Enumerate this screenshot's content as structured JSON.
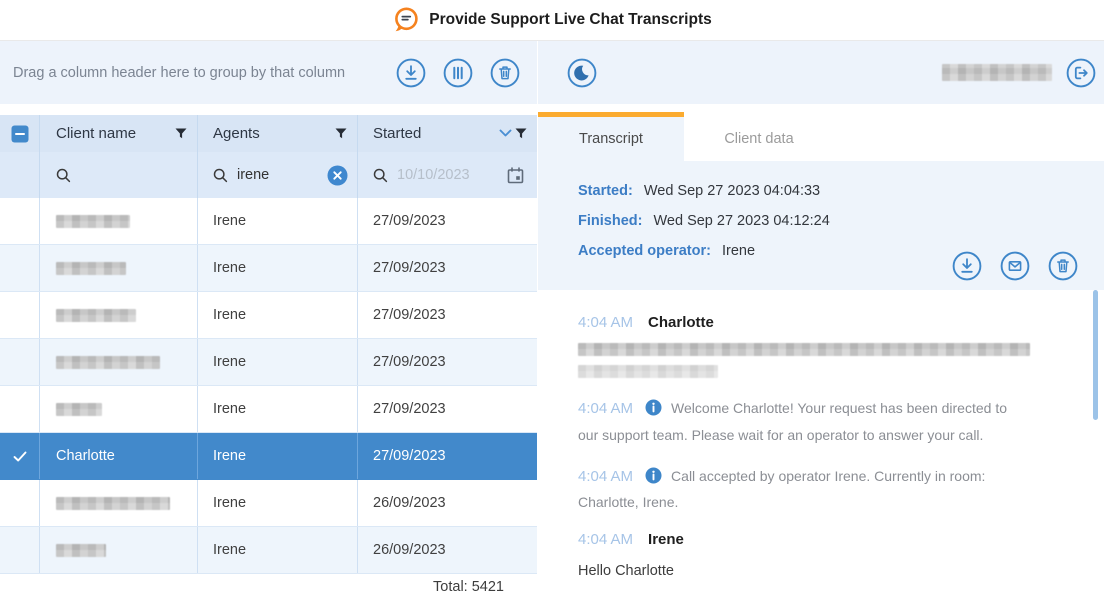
{
  "banner": {
    "title": "Provide Support Live Chat Transcripts"
  },
  "colors": {
    "accent_blue": "#3e86c9",
    "selected_row": "#4289cb",
    "tab_orange": "#fbab2f",
    "logo_orange": "#f5821f"
  },
  "left_panel": {
    "group_hint": "Drag a column header here to group by that column",
    "toolbar_icons": [
      "download-icon",
      "column-chooser-icon",
      "trash-icon"
    ],
    "columns": [
      {
        "label": "Client name"
      },
      {
        "label": "Agents"
      },
      {
        "label": "Started",
        "sort": "desc"
      }
    ],
    "filters": {
      "client_value": "",
      "agents_value": "irene",
      "started_placeholder": "10/10/2023"
    },
    "rows": [
      {
        "client": "",
        "redacted": true,
        "agent": "Irene",
        "started": "27/09/2023",
        "selected": false
      },
      {
        "client": "",
        "redacted": true,
        "agent": "Irene",
        "started": "27/09/2023",
        "selected": false
      },
      {
        "client": "",
        "redacted": true,
        "agent": "Irene",
        "started": "27/09/2023",
        "selected": false
      },
      {
        "client": "",
        "redacted": true,
        "agent": "Irene",
        "started": "27/09/2023",
        "selected": false
      },
      {
        "client": "",
        "redacted": true,
        "agent": "Irene",
        "started": "27/09/2023",
        "selected": false
      },
      {
        "client": "Charlotte",
        "redacted": false,
        "agent": "Irene",
        "started": "27/09/2023",
        "selected": true
      },
      {
        "client": "",
        "redacted": true,
        "agent": "Irene",
        "started": "26/09/2023",
        "selected": false
      },
      {
        "client": "",
        "redacted": true,
        "agent": "Irene",
        "started": "26/09/2023",
        "selected": false
      }
    ],
    "total": "Total: 5421"
  },
  "right_panel": {
    "header_icons": [
      "moon-icon",
      "logout-icon"
    ],
    "tabs": [
      {
        "label": "Transcript",
        "active": true
      },
      {
        "label": "Client data",
        "active": false
      }
    ],
    "meta": [
      {
        "label": "Started:",
        "value": "Wed Sep 27 2023 04:04:33"
      },
      {
        "label": "Finished:",
        "value": "Wed Sep 27 2023 04:12:24"
      },
      {
        "label": "Accepted operator:",
        "value": "Irene"
      }
    ],
    "meta_icons": [
      "download-icon",
      "email-icon",
      "trash-icon"
    ],
    "messages": [
      {
        "time": "4:04 AM",
        "author": "Charlotte",
        "type": "visitor",
        "redacted": true,
        "text": ""
      },
      {
        "time": "4:04 AM",
        "type": "system",
        "text": "Welcome Charlotte! Your request has been directed to our support team. Please wait for an operator to answer your call."
      },
      {
        "time": "4:04 AM",
        "type": "system",
        "text": "Call accepted by operator Irene. Currently in room: Charlotte, Irene."
      },
      {
        "time": "4:04 AM",
        "author": "Irene",
        "type": "operator",
        "redacted": false,
        "text": "Hello Charlotte"
      }
    ]
  }
}
